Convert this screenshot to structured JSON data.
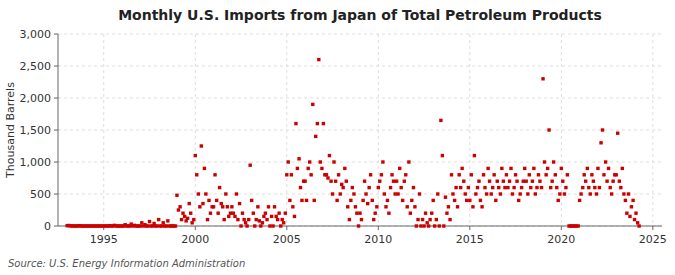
{
  "chart_data": {
    "type": "scatter",
    "title": "Monthly U.S. Imports from Japan of Total Petroleum Products",
    "ylabel": "Thousand Barrels",
    "annotations": [
      "Source: U.S. Energy Information Administration"
    ],
    "color": "#cc0000",
    "marker": "square",
    "grid": true,
    "xlim": [
      1992.5,
      2025.5
    ],
    "xticks": [
      1995,
      2000,
      2005,
      2010,
      2015,
      2020,
      2025
    ],
    "ylim": [
      0,
      3000
    ],
    "yticks": [
      0,
      500,
      {
        "value": 1000,
        "label": "1,000"
      },
      {
        "value": 1500,
        "label": "1,500"
      },
      {
        "value": 2000,
        "label": "2,000"
      },
      {
        "value": 2500,
        "label": "2,500"
      },
      {
        "value": 3000,
        "label": "3,000"
      }
    ],
    "x": [
      1993.0,
      1993.08,
      1993.17,
      1993.25,
      1993.33,
      1993.42,
      1993.5,
      1993.58,
      1993.67,
      1993.75,
      1993.83,
      1993.92,
      1994.0,
      1994.08,
      1994.17,
      1994.25,
      1994.33,
      1994.42,
      1994.5,
      1994.58,
      1994.67,
      1994.75,
      1994.83,
      1994.92,
      1995.0,
      1995.08,
      1995.17,
      1995.25,
      1995.33,
      1995.42,
      1995.5,
      1995.58,
      1995.67,
      1995.75,
      1995.83,
      1995.92,
      1996.0,
      1996.08,
      1996.17,
      1996.25,
      1996.33,
      1996.42,
      1996.5,
      1996.58,
      1996.67,
      1996.75,
      1996.83,
      1996.92,
      1997.0,
      1997.08,
      1997.17,
      1997.25,
      1997.33,
      1997.42,
      1997.5,
      1997.58,
      1997.67,
      1997.75,
      1997.83,
      1997.92,
      1998.0,
      1998.08,
      1998.17,
      1998.25,
      1998.33,
      1998.42,
      1998.5,
      1998.58,
      1998.67,
      1998.75,
      1998.83,
      1998.92,
      1999.0,
      1999.08,
      1999.17,
      1999.25,
      1999.33,
      1999.42,
      1999.5,
      1999.58,
      1999.67,
      1999.75,
      1999.83,
      1999.92,
      2000.0,
      2000.08,
      2000.17,
      2000.25,
      2000.33,
      2000.42,
      2000.5,
      2000.58,
      2000.67,
      2000.75,
      2000.83,
      2000.92,
      2001.0,
      2001.08,
      2001.17,
      2001.25,
      2001.33,
      2001.42,
      2001.5,
      2001.58,
      2001.67,
      2001.75,
      2001.83,
      2001.92,
      2002.0,
      2002.08,
      2002.17,
      2002.25,
      2002.33,
      2002.42,
      2002.5,
      2002.58,
      2002.67,
      2002.75,
      2002.83,
      2002.92,
      2003.0,
      2003.08,
      2003.17,
      2003.25,
      2003.33,
      2003.42,
      2003.5,
      2003.58,
      2003.67,
      2003.75,
      2003.83,
      2003.92,
      2004.0,
      2004.08,
      2004.17,
      2004.25,
      2004.33,
      2004.42,
      2004.5,
      2004.58,
      2004.67,
      2004.75,
      2004.83,
      2004.92,
      2005.0,
      2005.08,
      2005.17,
      2005.25,
      2005.33,
      2005.42,
      2005.5,
      2005.58,
      2005.67,
      2005.75,
      2005.83,
      2005.92,
      2006.0,
      2006.08,
      2006.17,
      2006.25,
      2006.33,
      2006.42,
      2006.5,
      2006.58,
      2006.67,
      2006.75,
      2006.83,
      2006.92,
      2007.0,
      2007.08,
      2007.17,
      2007.25,
      2007.33,
      2007.42,
      2007.5,
      2007.58,
      2007.67,
      2007.75,
      2007.83,
      2007.92,
      2008.0,
      2008.08,
      2008.17,
      2008.25,
      2008.33,
      2008.42,
      2008.5,
      2008.58,
      2008.67,
      2008.75,
      2008.83,
      2008.92,
      2009.0,
      2009.08,
      2009.17,
      2009.25,
      2009.33,
      2009.42,
      2009.5,
      2009.58,
      2009.67,
      2009.75,
      2009.83,
      2009.92,
      2010.0,
      2010.08,
      2010.17,
      2010.25,
      2010.33,
      2010.42,
      2010.5,
      2010.58,
      2010.67,
      2010.75,
      2010.83,
      2010.92,
      2011.0,
      2011.08,
      2011.17,
      2011.25,
      2011.33,
      2011.42,
      2011.5,
      2011.58,
      2011.67,
      2011.75,
      2011.83,
      2011.92,
      2012.0,
      2012.08,
      2012.17,
      2012.25,
      2012.33,
      2012.42,
      2012.5,
      2012.58,
      2012.67,
      2012.75,
      2012.83,
      2012.92,
      2013.0,
      2013.08,
      2013.17,
      2013.25,
      2013.33,
      2013.42,
      2013.5,
      2013.58,
      2013.67,
      2013.75,
      2013.83,
      2013.92,
      2014.0,
      2014.08,
      2014.17,
      2014.25,
      2014.33,
      2014.42,
      2014.5,
      2014.58,
      2014.67,
      2014.75,
      2014.83,
      2014.92,
      2015.0,
      2015.08,
      2015.17,
      2015.25,
      2015.33,
      2015.42,
      2015.5,
      2015.58,
      2015.67,
      2015.75,
      2015.83,
      2015.92,
      2016.0,
      2016.08,
      2016.17,
      2016.25,
      2016.33,
      2016.42,
      2016.5,
      2016.58,
      2016.67,
      2016.75,
      2016.83,
      2016.92,
      2017.0,
      2017.08,
      2017.17,
      2017.25,
      2017.33,
      2017.42,
      2017.5,
      2017.58,
      2017.67,
      2017.75,
      2017.83,
      2017.92,
      2018.0,
      2018.08,
      2018.17,
      2018.25,
      2018.33,
      2018.42,
      2018.5,
      2018.58,
      2018.67,
      2018.75,
      2018.83,
      2018.92,
      2019.0,
      2019.08,
      2019.17,
      2019.25,
      2019.33,
      2019.42,
      2019.5,
      2019.58,
      2019.67,
      2019.75,
      2019.83,
      2019.92,
      2020.0,
      2020.08,
      2020.17,
      2020.25,
      2020.33,
      2020.42,
      2020.5,
      2020.58,
      2020.67,
      2020.75,
      2020.83,
      2020.92,
      2021.0,
      2021.08,
      2021.17,
      2021.25,
      2021.33,
      2021.42,
      2021.5,
      2021.58,
      2021.67,
      2021.75,
      2021.83,
      2021.92,
      2022.0,
      2022.08,
      2022.17,
      2022.25,
      2022.33,
      2022.42,
      2022.5,
      2022.58,
      2022.67,
      2022.75,
      2022.83,
      2022.92,
      2023.0,
      2023.08,
      2023.17,
      2023.25,
      2023.33,
      2023.42,
      2023.5,
      2023.58,
      2023.67,
      2023.75,
      2023.83,
      2023.92,
      2024.0,
      2024.08,
      2024.17,
      2024.25
    ],
    "values": [
      5,
      8,
      3,
      0,
      2,
      0,
      0,
      0,
      5,
      0,
      0,
      0,
      0,
      0,
      0,
      0,
      0,
      0,
      0,
      0,
      0,
      0,
      0,
      0,
      0,
      0,
      0,
      0,
      5,
      0,
      0,
      10,
      0,
      0,
      0,
      0,
      0,
      0,
      20,
      0,
      0,
      0,
      30,
      0,
      10,
      0,
      0,
      0,
      0,
      50,
      0,
      20,
      0,
      0,
      70,
      0,
      0,
      40,
      0,
      0,
      100,
      0,
      0,
      50,
      0,
      0,
      80,
      0,
      0,
      0,
      0,
      0,
      480,
      250,
      300,
      100,
      200,
      150,
      80,
      120,
      350,
      200,
      50,
      100,
      1100,
      800,
      500,
      300,
      1250,
      350,
      900,
      500,
      100,
      400,
      200,
      300,
      300,
      800,
      400,
      200,
      600,
      350,
      300,
      100,
      500,
      300,
      150,
      200,
      300,
      200,
      150,
      500,
      100,
      350,
      0,
      200,
      100,
      50,
      0,
      100,
      950,
      400,
      200,
      0,
      100,
      300,
      80,
      0,
      50,
      150,
      200,
      100,
      300,
      0,
      150,
      0,
      300,
      150,
      100,
      200,
      0,
      100,
      50,
      200,
      800,
      1000,
      400,
      800,
      300,
      150,
      1600,
      900,
      1050,
      600,
      400,
      700,
      700,
      400,
      900,
      1000,
      800,
      1900,
      400,
      1400,
      1600,
      2600,
      1000,
      900,
      1600,
      800,
      800,
      750,
      1100,
      700,
      500,
      1000,
      700,
      400,
      800,
      500,
      650,
      600,
      900,
      700,
      300,
      100,
      400,
      600,
      500,
      300,
      200,
      0,
      200,
      100,
      400,
      700,
      500,
      350,
      600,
      800,
      400,
      100,
      200,
      300,
      600,
      700,
      800,
      1000,
      500,
      300,
      400,
      200,
      600,
      800,
      700,
      500,
      700,
      500,
      900,
      600,
      400,
      700,
      800,
      300,
      1000,
      200,
      400,
      600,
      300,
      0,
      100,
      500,
      0,
      100,
      0,
      200,
      50,
      0,
      100,
      200,
      400,
      0,
      100,
      500,
      0,
      1650,
      1100,
      0,
      450,
      200,
      300,
      100,
      800,
      500,
      400,
      600,
      300,
      800,
      600,
      900,
      700,
      500,
      400,
      600,
      400,
      800,
      300,
      1100,
      500,
      600,
      700,
      400,
      300,
      800,
      600,
      500,
      900,
      700,
      500,
      600,
      800,
      400,
      700,
      600,
      500,
      900,
      700,
      600,
      800,
      600,
      700,
      900,
      500,
      600,
      800,
      700,
      400,
      500,
      600,
      700,
      900,
      700,
      500,
      800,
      600,
      700,
      900,
      500,
      600,
      800,
      700,
      600,
      2300,
      1000,
      800,
      900,
      1500,
      600,
      700,
      1000,
      800,
      600,
      400,
      500,
      900,
      700,
      500,
      600,
      800,
      0,
      0,
      0,
      0,
      0,
      0,
      0,
      400,
      500,
      600,
      800,
      700,
      900,
      600,
      500,
      800,
      700,
      600,
      500,
      900,
      600,
      1300,
      1500,
      800,
      1000,
      700,
      900,
      600,
      500,
      700,
      800,
      800,
      1450,
      700,
      600,
      900,
      500,
      400,
      200,
      500,
      150,
      300,
      400,
      100,
      200,
      50,
      0
    ]
  }
}
